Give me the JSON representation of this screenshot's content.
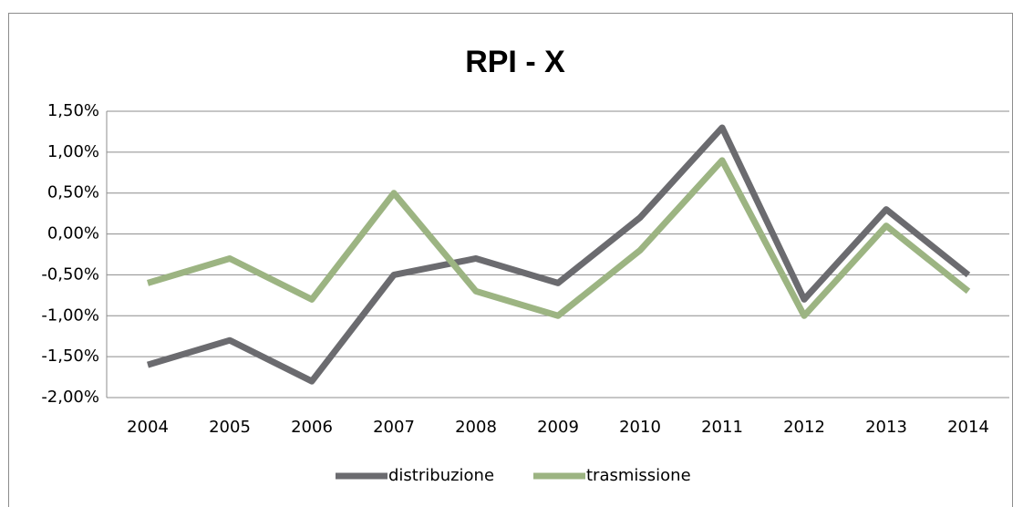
{
  "chart_data": {
    "type": "line",
    "title": "RPI - X",
    "categories": [
      "2004",
      "2005",
      "2006",
      "2007",
      "2008",
      "2009",
      "2010",
      "2011",
      "2012",
      "2013",
      "2014"
    ],
    "series": [
      {
        "name": "distribuzione",
        "color": "#6b6b6f",
        "values": [
          -1.6,
          -1.3,
          -1.8,
          -0.5,
          -0.3,
          -0.6,
          0.2,
          1.3,
          -0.8,
          0.3,
          -0.5
        ]
      },
      {
        "name": "trasmissione",
        "color": "#9cb482",
        "values": [
          -0.6,
          -0.3,
          -0.8,
          0.5,
          -0.7,
          -1.0,
          -0.2,
          0.9,
          -1.0,
          0.1,
          -0.7
        ]
      }
    ],
    "ylim": [
      -2.0,
      1.5
    ],
    "yticks": [
      {
        "value": -2.0,
        "label": "-2,00%"
      },
      {
        "value": -1.5,
        "label": "-1,50%"
      },
      {
        "value": -1.0,
        "label": "-1,00%"
      },
      {
        "value": -0.5,
        "label": "-0,50%"
      },
      {
        "value": 0,
        "label": "0,00%"
      },
      {
        "value": 0.5,
        "label": "0,50%"
      },
      {
        "value": 1.0,
        "label": "1,00%"
      },
      {
        "value": 1.5,
        "label": "1,50%"
      }
    ],
    "grid": true,
    "legend": "bottom"
  }
}
